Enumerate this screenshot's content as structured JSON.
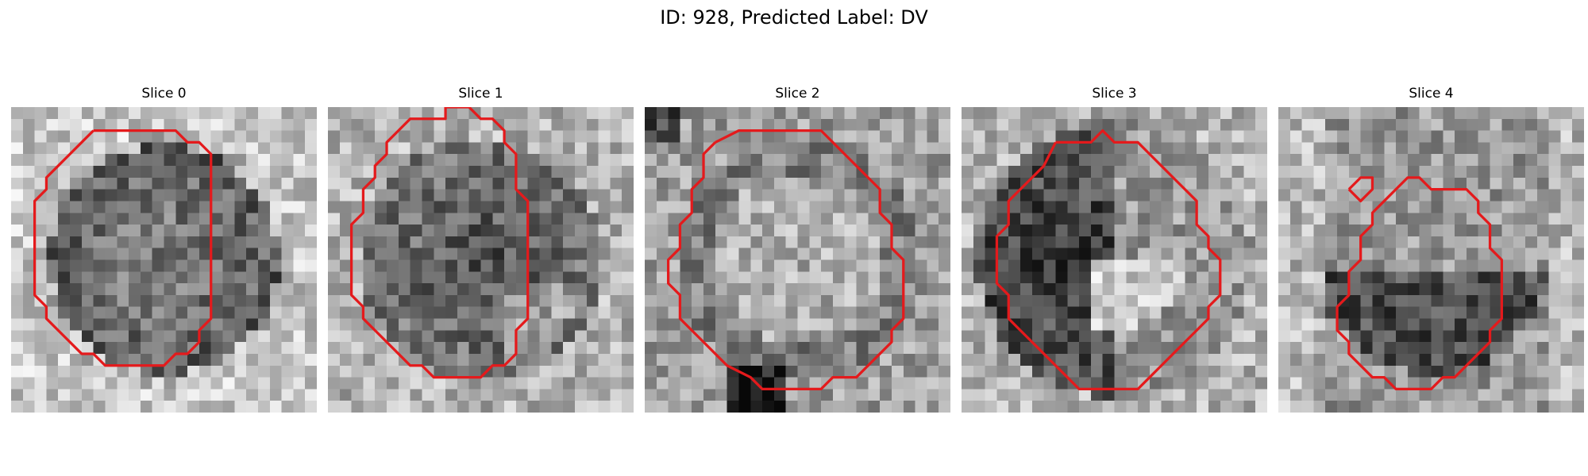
{
  "figure": {
    "title": "ID: 928, Predicted Label: DV"
  },
  "panels": [
    {
      "title": "Slice 0",
      "pattern": "dark-ring",
      "seed": 11,
      "contour_color": "#e41a1c",
      "contours": [
        [
          [
            7,
            2
          ],
          [
            14,
            2
          ],
          [
            15,
            3
          ],
          [
            16,
            3
          ],
          [
            17,
            4
          ],
          [
            17,
            9
          ],
          [
            17,
            18
          ],
          [
            16,
            19
          ],
          [
            16,
            20
          ],
          [
            15,
            21
          ],
          [
            14,
            21
          ],
          [
            13,
            22
          ],
          [
            8,
            22
          ],
          [
            7,
            21
          ],
          [
            6,
            21
          ],
          [
            5,
            20
          ],
          [
            4,
            19
          ],
          [
            3,
            18
          ],
          [
            3,
            17
          ],
          [
            2,
            16
          ],
          [
            2,
            15
          ],
          [
            2,
            14
          ],
          [
            2,
            10
          ],
          [
            2,
            8
          ],
          [
            3,
            7
          ],
          [
            3,
            6
          ],
          [
            4,
            5
          ],
          [
            5,
            4
          ],
          [
            6,
            3
          ]
        ]
      ]
    },
    {
      "title": "Slice 1",
      "pattern": "dark-blob",
      "seed": 23,
      "contour_color": "#e41a1c",
      "contours": [
        [
          [
            9,
            1
          ],
          [
            10,
            1
          ],
          [
            10,
            0
          ],
          [
            12,
            0
          ],
          [
            13,
            1
          ],
          [
            14,
            1
          ],
          [
            15,
            2
          ],
          [
            15,
            3
          ],
          [
            16,
            4
          ],
          [
            16,
            6
          ],
          [
            16,
            7
          ],
          [
            17,
            8
          ],
          [
            17,
            9
          ],
          [
            17,
            12
          ],
          [
            17,
            15
          ],
          [
            17,
            18
          ],
          [
            16,
            19
          ],
          [
            16,
            21
          ],
          [
            15,
            22
          ],
          [
            14,
            22
          ],
          [
            13,
            23
          ],
          [
            9,
            23
          ],
          [
            8,
            22
          ],
          [
            7,
            22
          ],
          [
            6,
            21
          ],
          [
            5,
            20
          ],
          [
            4,
            19
          ],
          [
            3,
            18
          ],
          [
            3,
            17
          ],
          [
            2,
            16
          ],
          [
            2,
            15
          ],
          [
            2,
            14
          ],
          [
            2,
            12
          ],
          [
            2,
            10
          ],
          [
            3,
            9
          ],
          [
            3,
            8
          ],
          [
            3,
            7
          ],
          [
            4,
            6
          ],
          [
            4,
            5
          ],
          [
            5,
            4
          ],
          [
            5,
            3
          ],
          [
            6,
            2
          ],
          [
            7,
            1
          ],
          [
            8,
            1
          ]
        ]
      ]
    },
    {
      "title": "Slice 2",
      "pattern": "bright-center",
      "seed": 37,
      "contour_color": "#e41a1c",
      "contours": [
        [
          [
            6,
            3
          ],
          [
            8,
            2
          ],
          [
            15,
            2
          ],
          [
            16,
            3
          ],
          [
            17,
            4
          ],
          [
            18,
            5
          ],
          [
            19,
            6
          ],
          [
            20,
            7
          ],
          [
            20,
            9
          ],
          [
            21,
            10
          ],
          [
            21,
            12
          ],
          [
            22,
            13
          ],
          [
            22,
            18
          ],
          [
            21,
            19
          ],
          [
            21,
            20
          ],
          [
            20,
            21
          ],
          [
            19,
            22
          ],
          [
            18,
            23
          ],
          [
            16,
            23
          ],
          [
            15,
            24
          ],
          [
            10,
            24
          ],
          [
            9,
            23
          ],
          [
            7,
            22
          ],
          [
            6,
            21
          ],
          [
            5,
            20
          ],
          [
            4,
            19
          ],
          [
            3,
            18
          ],
          [
            3,
            16
          ],
          [
            2,
            15
          ],
          [
            2,
            13
          ],
          [
            3,
            12
          ],
          [
            3,
            10
          ],
          [
            4,
            9
          ],
          [
            4,
            7
          ],
          [
            5,
            6
          ],
          [
            5,
            4
          ]
        ]
      ]
    },
    {
      "title": "Slice 3",
      "pattern": "split",
      "seed": 53,
      "contour_color": "#e41a1c",
      "contours": [
        [
          [
            8,
            3
          ],
          [
            11,
            3
          ],
          [
            12,
            2
          ],
          [
            13,
            3
          ],
          [
            15,
            3
          ],
          [
            16,
            4
          ],
          [
            17,
            5
          ],
          [
            18,
            6
          ],
          [
            19,
            7
          ],
          [
            20,
            8
          ],
          [
            20,
            10
          ],
          [
            21,
            11
          ],
          [
            21,
            12
          ],
          [
            22,
            13
          ],
          [
            22,
            16
          ],
          [
            21,
            17
          ],
          [
            21,
            18
          ],
          [
            20,
            19
          ],
          [
            19,
            20
          ],
          [
            18,
            21
          ],
          [
            17,
            22
          ],
          [
            16,
            23
          ],
          [
            15,
            24
          ],
          [
            10,
            24
          ],
          [
            9,
            23
          ],
          [
            8,
            22
          ],
          [
            7,
            21
          ],
          [
            6,
            20
          ],
          [
            5,
            19
          ],
          [
            4,
            18
          ],
          [
            4,
            16
          ],
          [
            3,
            15
          ],
          [
            3,
            11
          ],
          [
            4,
            10
          ],
          [
            4,
            8
          ],
          [
            5,
            7
          ],
          [
            6,
            6
          ],
          [
            7,
            5
          ]
        ]
      ]
    },
    {
      "title": "Slice 4",
      "pattern": "noisy-lower-dark",
      "seed": 71,
      "contour_color": "#e41a1c",
      "contours": [
        [
          [
            10,
            7
          ],
          [
            11,
            6
          ],
          [
            12,
            6
          ],
          [
            13,
            7
          ],
          [
            14,
            7
          ],
          [
            16,
            7
          ],
          [
            17,
            8
          ],
          [
            17,
            9
          ],
          [
            18,
            10
          ],
          [
            18,
            12
          ],
          [
            19,
            13
          ],
          [
            19,
            18
          ],
          [
            18,
            19
          ],
          [
            18,
            20
          ],
          [
            17,
            21
          ],
          [
            16,
            22
          ],
          [
            15,
            23
          ],
          [
            14,
            23
          ],
          [
            13,
            24
          ],
          [
            10,
            24
          ],
          [
            9,
            23
          ],
          [
            8,
            23
          ],
          [
            7,
            22
          ],
          [
            6,
            21
          ],
          [
            6,
            20
          ],
          [
            5,
            19
          ],
          [
            5,
            17
          ],
          [
            6,
            16
          ],
          [
            6,
            14
          ],
          [
            7,
            13
          ],
          [
            7,
            11
          ],
          [
            8,
            10
          ],
          [
            8,
            9
          ],
          [
            9,
            8
          ]
        ],
        [
          [
            6,
            7
          ],
          [
            7,
            6
          ],
          [
            8,
            6
          ],
          [
            8,
            7
          ],
          [
            7,
            8
          ],
          [
            6,
            7
          ]
        ]
      ]
    }
  ]
}
